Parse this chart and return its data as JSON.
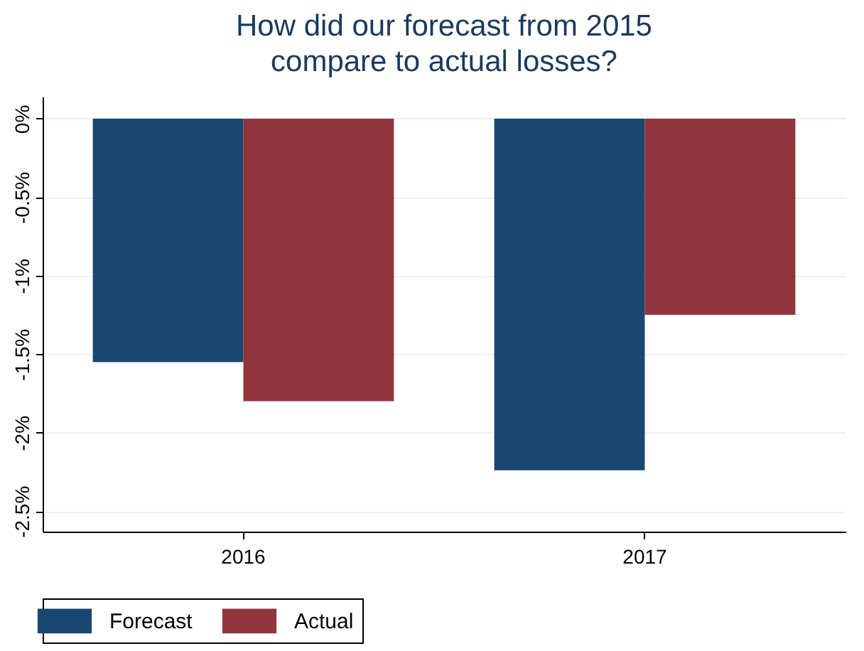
{
  "chart_data": {
    "type": "bar",
    "title": "How did our forecast from 2015\ncompare to actual losses?",
    "categories": [
      "2016",
      "2017"
    ],
    "series": [
      {
        "name": "Forecast",
        "color": "#1a476f",
        "values": [
          -1.55,
          -2.24
        ]
      },
      {
        "name": "Actual",
        "color": "#90353b",
        "values": [
          -1.8,
          -1.25
        ]
      }
    ],
    "ylim": [
      -2.63,
      0.14
    ],
    "yticks": [
      {
        "value": 0,
        "label": "0%"
      },
      {
        "value": -0.5,
        "label": "-0.5%"
      },
      {
        "value": -1,
        "label": "-1%"
      },
      {
        "value": -1.5,
        "label": "-1.5%"
      },
      {
        "value": -2,
        "label": "-2%"
      },
      {
        "value": -2.5,
        "label": "-2.5%"
      }
    ],
    "grid": "y",
    "legend": "bottom"
  }
}
